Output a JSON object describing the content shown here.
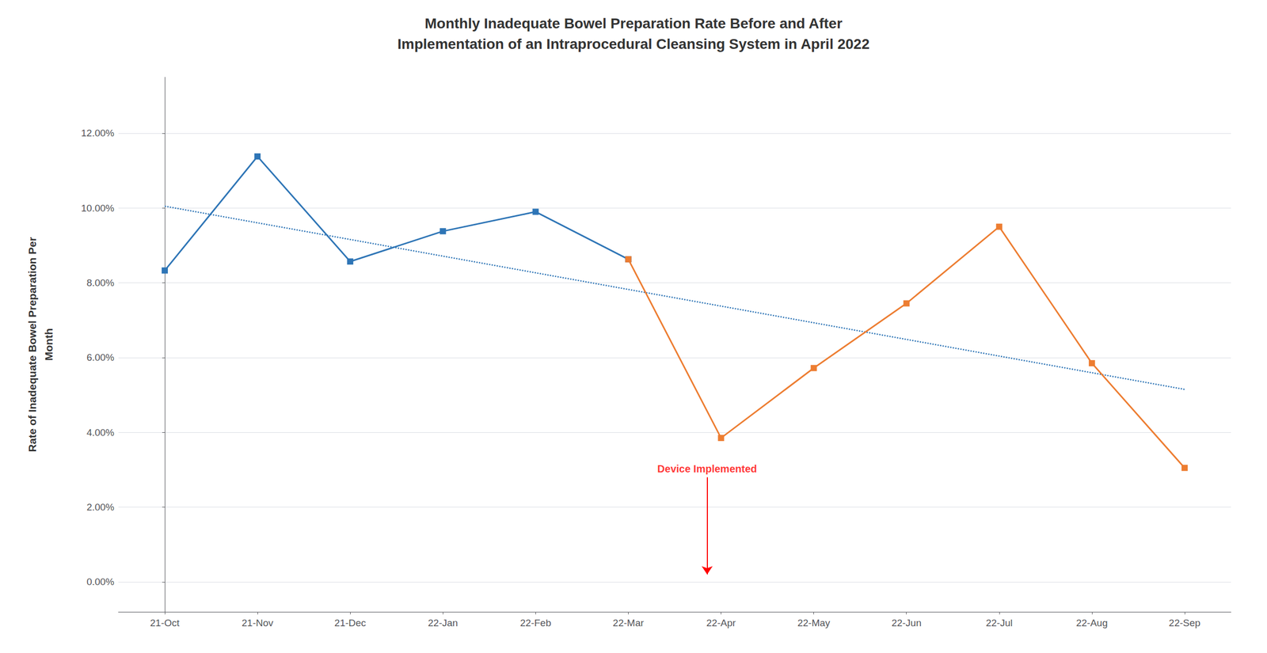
{
  "chart_data": {
    "type": "line",
    "title": "Monthly Inadequate Bowel Preparation Rate Before and After\nImplementation of an Intraprocedural Cleansing System in April 2022",
    "y_label": "Rate of Inadequate Bowel Preparation Per\nMonth",
    "categories": [
      "21-Oct",
      "21-Nov",
      "21-Dec",
      "22-Jan",
      "22-Feb",
      "22-Mar",
      "22-Apr",
      "22-May",
      "22-Jun",
      "22-Jul",
      "22-Aug",
      "22-Sep"
    ],
    "series": [
      {
        "color": "#2E75B6",
        "marker": "square",
        "line_style": "solid",
        "values": [
          0.0833,
          0.1138,
          0.0857,
          0.0938,
          0.099,
          0.0863,
          null,
          null,
          null,
          null,
          null,
          null
        ]
      },
      {
        "color": "#ED7D31",
        "marker": "square",
        "line_style": "solid",
        "values": [
          null,
          null,
          null,
          null,
          null,
          0.0863,
          0.0385,
          0.0572,
          0.0745,
          0.095,
          0.0585,
          0.0305
        ]
      }
    ],
    "trendline": {
      "x": [
        0,
        11
      ],
      "values": [
        0.1005,
        0.0515
      ],
      "color": "#2E75B6",
      "line_style": "dotted"
    },
    "annotations": [
      {
        "text": "Device Implemented",
        "x": 5.85,
        "y": 0.028,
        "arrow_y": 0.002,
        "color": "#FF0000"
      }
    ],
    "ylim": [
      -0.008,
      0.135
    ],
    "yticks": [
      {
        "value": 0.0,
        "label": "0.00%"
      },
      {
        "value": 0.02,
        "label": "2.00%"
      },
      {
        "value": 0.04,
        "label": "4.00%"
      },
      {
        "value": 0.06,
        "label": "6.00%"
      },
      {
        "value": 0.08,
        "label": "8.00%"
      },
      {
        "value": 0.1,
        "label": "10.00%"
      },
      {
        "value": 0.12,
        "label": "12.00%"
      }
    ],
    "grid": true
  }
}
